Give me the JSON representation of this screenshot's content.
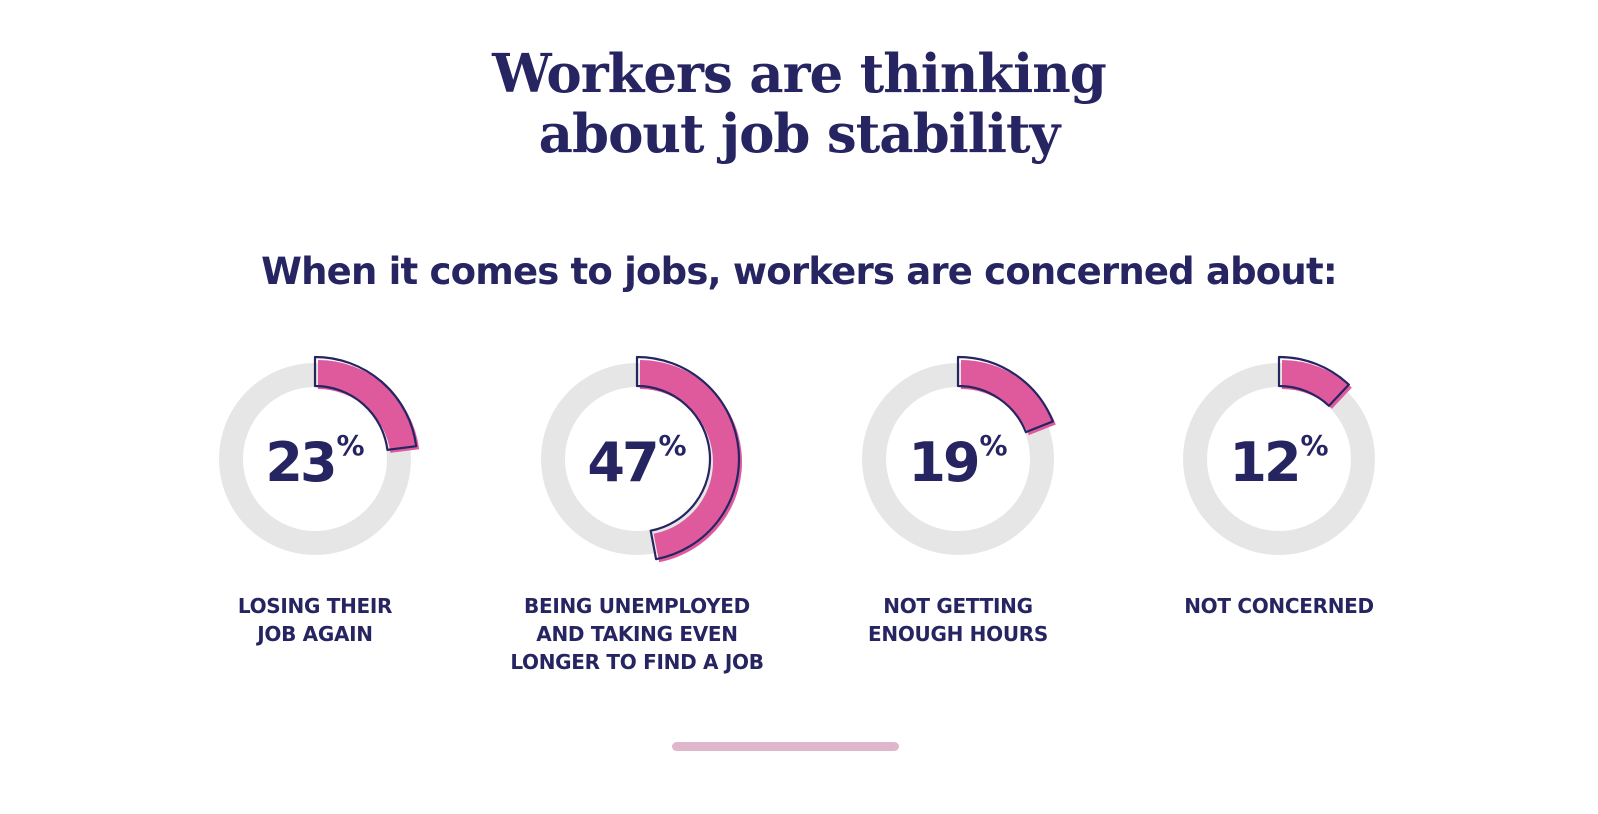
{
  "title_lines": [
    "Workers are thinking",
    "about job stability"
  ],
  "subtitle": "When it comes to jobs, workers are concerned about:",
  "percent_sign": "%",
  "colors": {
    "navy": "#262562",
    "pink": "#df5a9c",
    "track": "#e6e6e6",
    "scrollbar": "#e0b6cd"
  },
  "chart_data": {
    "type": "donut",
    "title": "When it comes to jobs, workers are concerned about:",
    "categories": [
      "LOSING THEIR JOB AGAIN",
      "BEING UNEMPLOYED AND TAKING EVEN LONGER TO FIND A JOB",
      "NOT GETTING ENOUGH HOURS",
      "NOT CONCERNED"
    ],
    "values": [
      23,
      47,
      19,
      12
    ],
    "unit": "%",
    "items": [
      {
        "value": 23,
        "display": "23",
        "label_lines": [
          "LOSING THEIR",
          "JOB AGAIN"
        ]
      },
      {
        "value": 47,
        "display": "47",
        "label_lines": [
          "BEING UNEMPLOYED",
          "AND TAKING EVEN",
          "LONGER TO FIND A JOB"
        ]
      },
      {
        "value": 19,
        "display": "19",
        "label_lines": [
          "NOT GETTING",
          "ENOUGH HOURS"
        ]
      },
      {
        "value": 12,
        "display": "12",
        "label_lines": [
          "NOT CONCERNED"
        ]
      }
    ]
  }
}
